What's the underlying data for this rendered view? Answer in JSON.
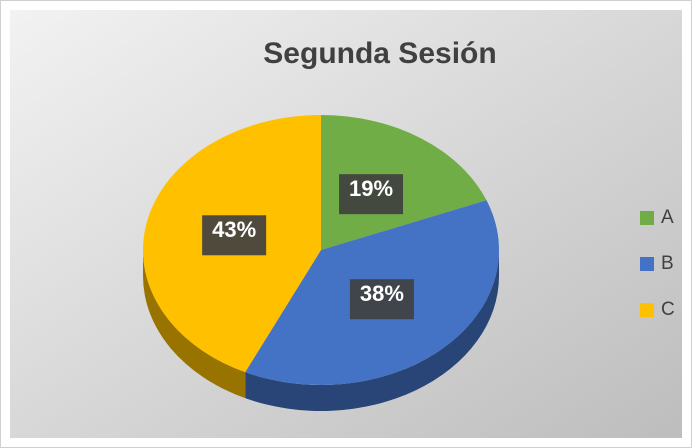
{
  "chart_data": {
    "type": "pie",
    "title": "Segunda Sesión",
    "categories": [
      "A",
      "B",
      "C"
    ],
    "values": [
      19,
      38,
      43
    ],
    "value_labels": [
      "19%",
      "38%",
      "43%"
    ],
    "colors": [
      "#70ad47",
      "#4472c4",
      "#ffc000"
    ],
    "legend": "right"
  }
}
